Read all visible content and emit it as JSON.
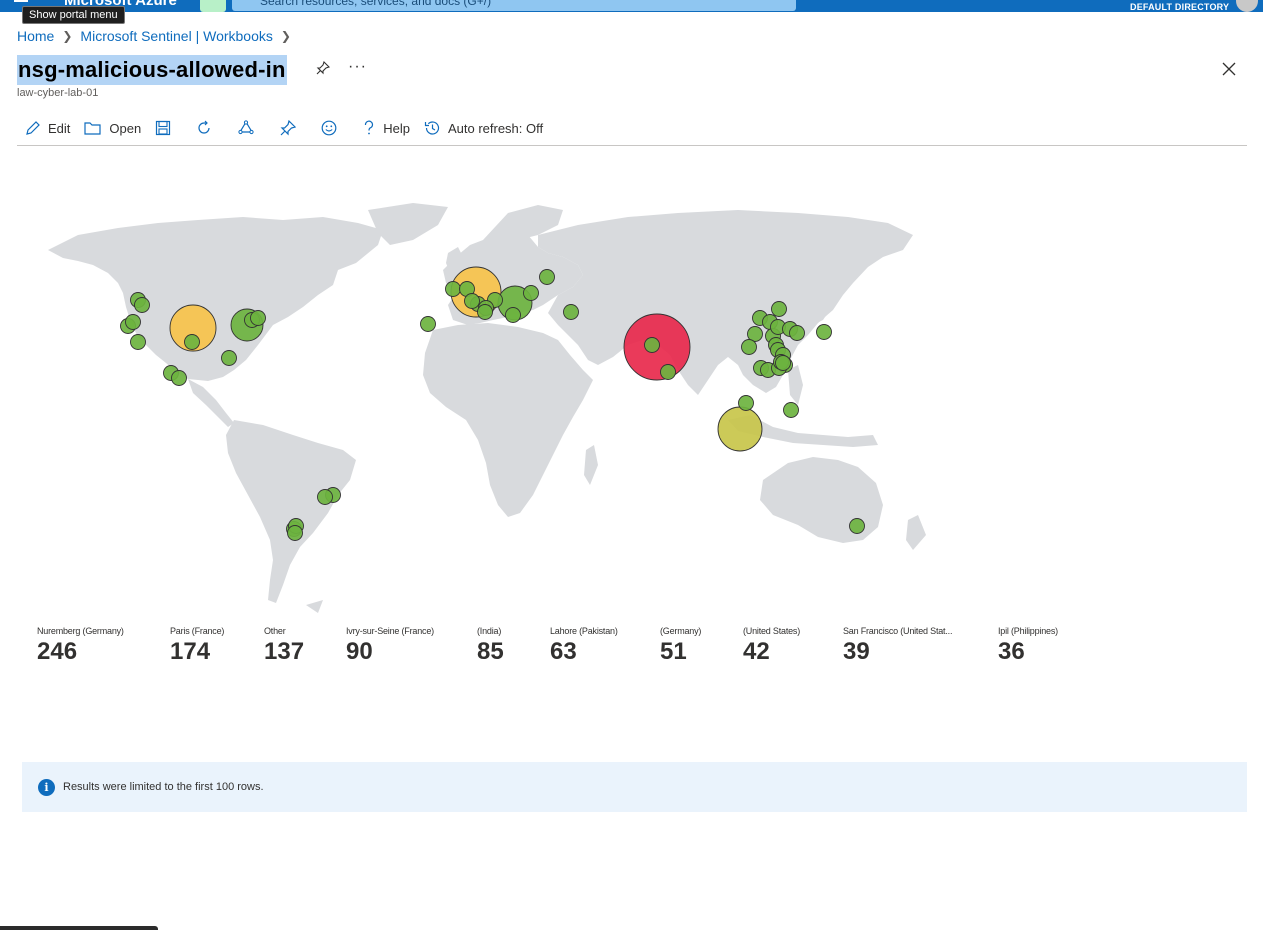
{
  "topbar": {
    "brand": "Microsoft Azure",
    "search_placeholder": "Search resources, services, and docs (G+/)",
    "directory": "DEFAULT DIRECTORY",
    "tooltip": "Show portal menu"
  },
  "breadcrumb": [
    "Home",
    "Microsoft Sentinel | Workbooks"
  ],
  "page": {
    "title": "nsg-malicious-allowed-in",
    "subtitle": "law-cyber-lab-01"
  },
  "toolbar": {
    "edit": "Edit",
    "open": "Open",
    "help": "Help",
    "auto_refresh": "Auto refresh: Off"
  },
  "tiles": [
    {
      "label": "Nuremberg (Germany)",
      "value": "246"
    },
    {
      "label": "Paris (France)",
      "value": "174"
    },
    {
      "label": "Other",
      "value": "137"
    },
    {
      "label": "Ivry-sur-Seine (France)",
      "value": "90"
    },
    {
      "label": "(India)",
      "value": "85"
    },
    {
      "label": "Lahore (Pakistan)",
      "value": "63"
    },
    {
      "label": "(Germany)",
      "value": "51"
    },
    {
      "label": "(United States)",
      "value": "42"
    },
    {
      "label": "San Francisco (United Stat...",
      "value": "39"
    },
    {
      "label": "Ipil (Philippines)",
      "value": "36"
    }
  ],
  "info": {
    "message": "Results were limited to the first 100 rows."
  },
  "colors": {
    "accent": "#0f6cbd",
    "marker_high": "#e8294c",
    "marker_mid": "#f7c34a",
    "marker_midlow": "#c8c64a",
    "marker_low": "#6db33f",
    "land": "#d8dadd"
  }
}
